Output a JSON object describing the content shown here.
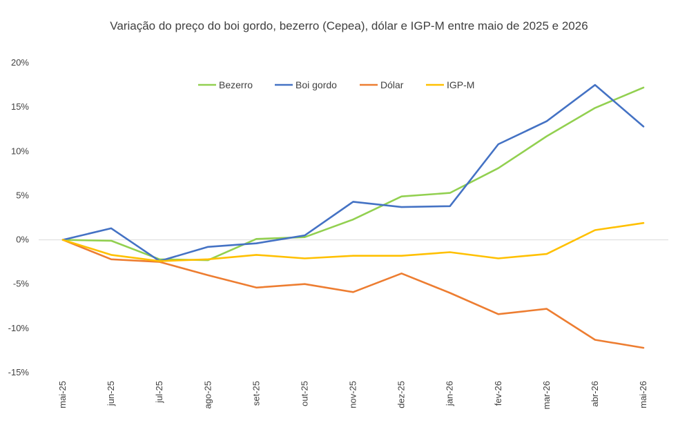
{
  "chart_data": {
    "type": "line",
    "title": "Variação do preço do boi gordo, bezerro (Cepea), dólar e IGP-M entre maio de 2025 e 2026",
    "categories": [
      "mai-25",
      "jun-25",
      "jul-25",
      "ago-25",
      "set-25",
      "out-25",
      "nov-25",
      "dez-25",
      "jan-26",
      "fev-26",
      "mar-26",
      "abr-26",
      "mai-26"
    ],
    "ylim": [
      -15,
      20
    ],
    "yticks": [
      -15,
      -10,
      -5,
      0,
      5,
      10,
      15,
      20
    ],
    "ytick_labels": [
      "-15%",
      "-10%",
      "-5%",
      "0%",
      "5%",
      "10%",
      "15%",
      "20%"
    ],
    "legend_position": "top",
    "grid": false,
    "series": [
      {
        "name": "Bezerro",
        "color": "#92d050",
        "values": [
          0,
          -0.1,
          -2.2,
          -2.3,
          0.1,
          0.3,
          2.3,
          4.9,
          5.3,
          8.1,
          11.7,
          14.9,
          17.2
        ]
      },
      {
        "name": "Boi gordo",
        "color": "#4472c4",
        "values": [
          0,
          1.3,
          -2.4,
          -0.8,
          -0.4,
          0.5,
          4.3,
          3.7,
          3.8,
          10.8,
          13.4,
          17.5,
          12.8
        ]
      },
      {
        "name": "Dólar",
        "color": "#ed7d31",
        "values": [
          0,
          -2.2,
          -2.5,
          -4.0,
          -5.4,
          -5.0,
          -5.9,
          -3.8,
          -6.0,
          -8.4,
          -7.8,
          -11.3,
          -12.2
        ]
      },
      {
        "name": "IGP-M",
        "color": "#ffc000",
        "values": [
          0,
          -1.7,
          -2.4,
          -2.2,
          -1.7,
          -2.1,
          -1.8,
          -1.8,
          -1.4,
          -2.1,
          -1.6,
          1.1,
          1.9
        ]
      }
    ]
  }
}
